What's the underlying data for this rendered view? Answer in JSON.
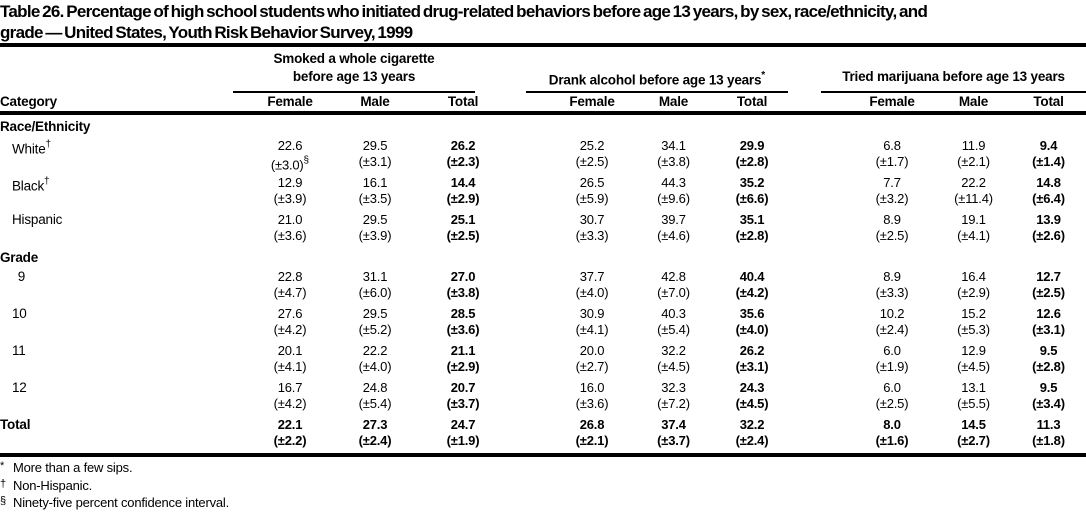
{
  "title": {
    "line1": "Table 26. Percentage of high school students who initiated drug-related behaviors before age 13 years, by sex, race/ethnicity, and",
    "line2": "grade — United States, Youth Risk Behavior Survey, 1999"
  },
  "header": {
    "category": "Category",
    "groups": [
      {
        "line1": "Smoked a whole cigarette",
        "line2": "before age 13 years",
        "sup": ""
      },
      {
        "line1": "",
        "line2": "Drank alcohol before age 13 years",
        "sup": "*"
      },
      {
        "line1": "",
        "line2": "Tried marijuana before age 13 years",
        "sup": ""
      }
    ],
    "subcols": [
      "Female",
      "Male",
      "Total"
    ]
  },
  "sections": [
    {
      "label": "Race/Ethnicity",
      "rows": [
        {
          "label": "White",
          "label_sup": "†",
          "values": [
            "22.6",
            "29.5",
            "26.2",
            "25.2",
            "34.1",
            "29.9",
            "6.8",
            "11.9",
            "9.4"
          ],
          "ci": [
            "(±3.0)",
            "(±3.1)",
            "(±2.3)",
            "(±2.5)",
            "(±3.8)",
            "(±2.8)",
            "(±1.7)",
            "(±2.1)",
            "(±1.4)"
          ],
          "ci_sups": [
            "§",
            "",
            "",
            "",
            "",
            "",
            "",
            "",
            ""
          ]
        },
        {
          "label": "Black",
          "label_sup": "†",
          "values": [
            "12.9",
            "16.1",
            "14.4",
            "26.5",
            "44.3",
            "35.2",
            "7.7",
            "22.2",
            "14.8"
          ],
          "ci": [
            "(±3.9)",
            "(±3.5)",
            "(±2.9)",
            "(±5.9)",
            "(±9.6)",
            "(±6.6)",
            "(±3.2)",
            "(±11.4)",
            "(±6.4)"
          ],
          "ci_sups": [
            "",
            "",
            "",
            "",
            "",
            "",
            "",
            "",
            ""
          ]
        },
        {
          "label": "Hispanic",
          "label_sup": "",
          "values": [
            "21.0",
            "29.5",
            "25.1",
            "30.7",
            "39.7",
            "35.1",
            "8.9",
            "19.1",
            "13.9"
          ],
          "ci": [
            "(±3.6)",
            "(±3.9)",
            "(±2.5)",
            "(±3.3)",
            "(±4.6)",
            "(±2.8)",
            "(±2.5)",
            "(±4.1)",
            "(±2.6)"
          ],
          "ci_sups": [
            "",
            "",
            "",
            "",
            "",
            "",
            "",
            "",
            ""
          ]
        }
      ]
    },
    {
      "label": "Grade",
      "rows": [
        {
          "label": "9",
          "label_sup": "",
          "values": [
            "22.8",
            "31.1",
            "27.0",
            "37.7",
            "42.8",
            "40.4",
            "8.9",
            "16.4",
            "12.7"
          ],
          "ci": [
            "(±4.7)",
            "(±6.0)",
            "(±3.8)",
            "(±4.0)",
            "(±7.0)",
            "(±4.2)",
            "(±3.3)",
            "(±2.9)",
            "(±2.5)"
          ],
          "ci_sups": [
            "",
            "",
            "",
            "",
            "",
            "",
            "",
            "",
            ""
          ]
        },
        {
          "label": "10",
          "label_sup": "",
          "values": [
            "27.6",
            "29.5",
            "28.5",
            "30.9",
            "40.3",
            "35.6",
            "10.2",
            "15.2",
            "12.6"
          ],
          "ci": [
            "(±4.2)",
            "(±5.2)",
            "(±3.6)",
            "(±4.1)",
            "(±5.4)",
            "(±4.0)",
            "(±2.4)",
            "(±5.3)",
            "(±3.1)"
          ],
          "ci_sups": [
            "",
            "",
            "",
            "",
            "",
            "",
            "",
            "",
            ""
          ]
        },
        {
          "label": "11",
          "label_sup": "",
          "values": [
            "20.1",
            "22.2",
            "21.1",
            "20.0",
            "32.2",
            "26.2",
            "6.0",
            "12.9",
            "9.5"
          ],
          "ci": [
            "(±4.1)",
            "(±4.0)",
            "(±2.9)",
            "(±2.7)",
            "(±4.5)",
            "(±3.1)",
            "(±1.9)",
            "(±4.5)",
            "(±2.8)"
          ],
          "ci_sups": [
            "",
            "",
            "",
            "",
            "",
            "",
            "",
            "",
            ""
          ]
        },
        {
          "label": "12",
          "label_sup": "",
          "values": [
            "16.7",
            "24.8",
            "20.7",
            "16.0",
            "32.3",
            "24.3",
            "6.0",
            "13.1",
            "9.5"
          ],
          "ci": [
            "(±4.2)",
            "(±5.4)",
            "(±3.7)",
            "(±3.6)",
            "(±7.2)",
            "(±4.5)",
            "(±2.5)",
            "(±5.5)",
            "(±3.4)"
          ],
          "ci_sups": [
            "",
            "",
            "",
            "",
            "",
            "",
            "",
            "",
            ""
          ]
        }
      ]
    }
  ],
  "total_row": {
    "label": "Total",
    "label_sup": "",
    "values": [
      "22.1",
      "27.3",
      "24.7",
      "26.8",
      "37.4",
      "32.2",
      "8.0",
      "14.5",
      "11.3"
    ],
    "ci": [
      "(±2.2)",
      "(±2.4)",
      "(±1.9)",
      "(±2.1)",
      "(±3.7)",
      "(±2.4)",
      "(±1.6)",
      "(±2.7)",
      "(±1.8)"
    ],
    "ci_sups": [
      "",
      "",
      "",
      "",
      "",
      "",
      "",
      "",
      ""
    ]
  },
  "footnotes": [
    {
      "marker": "*",
      "text": "More than a few sips."
    },
    {
      "marker": "†",
      "text": "Non-Hispanic."
    },
    {
      "marker": "§",
      "text": "Ninety-five percent confidence interval."
    }
  ]
}
